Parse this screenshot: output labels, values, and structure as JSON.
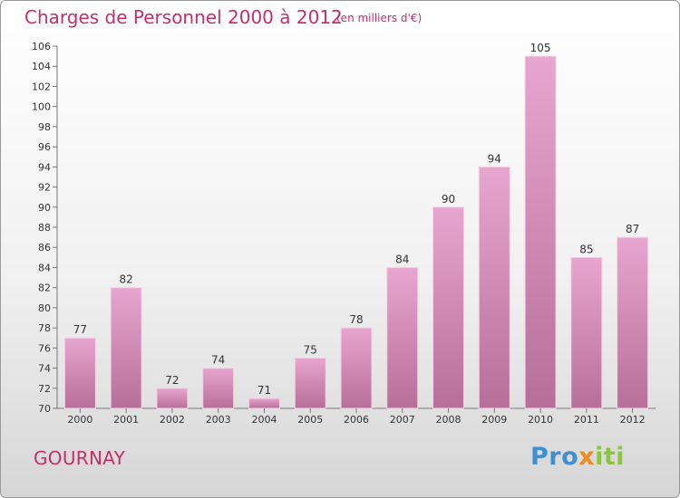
{
  "header": {
    "title": "Charges de Personnel 2000 à 2012",
    "subtitle": "(en milliers d'€)"
  },
  "footer": {
    "commune": "GOURNAY",
    "logo": {
      "part1": "Pro",
      "x": "x",
      "part2": "i",
      "part3": "t",
      "part4": "i"
    }
  },
  "colors": {
    "title": "#c4306a",
    "bar_top": "#e7a6cf",
    "bar_bottom": "#b76f98",
    "logo_pro": "#3f8fd1",
    "logo_x": "#f08a1c",
    "logo_iti": "#8cc63f"
  },
  "chart_data": {
    "type": "bar",
    "categories": [
      "2000",
      "2001",
      "2002",
      "2003",
      "2004",
      "2005",
      "2006",
      "2007",
      "2008",
      "2009",
      "2010",
      "2011",
      "2012"
    ],
    "values": [
      77,
      82,
      72,
      74,
      71,
      75,
      78,
      84,
      90,
      94,
      105,
      85,
      87
    ],
    "ylim": [
      70,
      106
    ],
    "yticks": [
      70,
      72,
      74,
      76,
      78,
      80,
      82,
      84,
      86,
      88,
      90,
      92,
      94,
      96,
      98,
      100,
      102,
      104,
      106
    ],
    "grid": false,
    "data_labels": true
  }
}
